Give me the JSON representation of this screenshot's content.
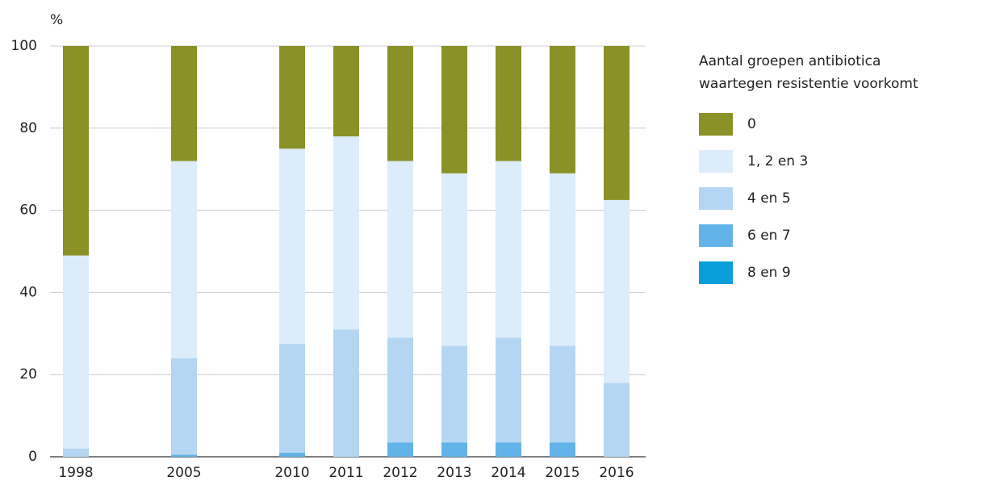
{
  "chart_data": {
    "type": "stacked_bar",
    "y_label": "%",
    "legend_title": [
      "Aantal groepen antibiotica",
      "waartegen resistentie voorkomt"
    ],
    "legend": "right",
    "grid": true,
    "categories": [
      "1998",
      null,
      "2005",
      null,
      "2010",
      "2011",
      "2012",
      "2013",
      "2014",
      "2015",
      "2016"
    ],
    "series": [
      {
        "name": "0",
        "color": "#8a9126",
        "values": [
          51,
          null,
          28,
          null,
          25,
          22,
          28,
          31,
          28,
          31,
          37.5
        ]
      },
      {
        "name": "1, 2 en 3",
        "color": "#dcecfa",
        "values": [
          47,
          null,
          48,
          null,
          47.5,
          47,
          43,
          42,
          43,
          42,
          44.5
        ]
      },
      {
        "name": "4 en 5",
        "color": "#b4d6f2",
        "values": [
          2,
          null,
          23.5,
          null,
          26.5,
          31,
          25.5,
          23.5,
          25.5,
          23.5,
          18
        ]
      },
      {
        "name": "6 en 7",
        "color": "#62b3e7",
        "values": [
          0,
          null,
          0.5,
          null,
          1,
          0,
          3.5,
          3.5,
          3.5,
          3.5,
          0
        ]
      },
      {
        "name": "8 en 9",
        "color": "#0a9edb",
        "values": [
          0,
          null,
          0,
          null,
          0,
          0,
          0,
          0,
          0,
          0,
          0
        ]
      }
    ],
    "ylim": [
      0,
      100
    ],
    "yticks": [
      0,
      20,
      40,
      60,
      80,
      100
    ]
  }
}
